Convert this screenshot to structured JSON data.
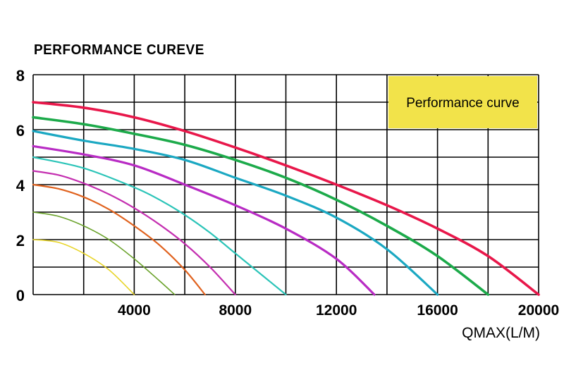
{
  "chart_data": {
    "type": "line",
    "title": "PERFORMANCE CUREVE",
    "xlabel": "QMAX(L/M)",
    "ylabel": "",
    "xlim": [
      0,
      20000
    ],
    "ylim": [
      0,
      8
    ],
    "x_ticks": [
      4000,
      8000,
      12000,
      16000,
      20000
    ],
    "x_tick_labels": [
      "4000",
      "8000",
      "12000",
      "16000",
      "20000"
    ],
    "y_ticks": [
      0,
      2,
      4,
      6,
      8
    ],
    "y_tick_labels": [
      "0",
      "2",
      "4",
      "6",
      "8"
    ],
    "grid": true,
    "legend_box": {
      "label": "Performance curve",
      "placement": "top-right",
      "color": "#f2e34a"
    },
    "series": [
      {
        "color": "#e8d52a",
        "x": [
          0,
          1000,
          2000,
          3000,
          4000
        ],
        "y": [
          2.0,
          1.9,
          1.5,
          0.9,
          0.0
        ]
      },
      {
        "color": "#6aa22a",
        "x": [
          0,
          1000,
          2000,
          3000,
          4000,
          5000,
          5600
        ],
        "y": [
          3.0,
          2.85,
          2.5,
          2.0,
          1.3,
          0.5,
          0.0
        ]
      },
      {
        "color": "#e0621e",
        "x": [
          0,
          1000,
          2000,
          3000,
          4000,
          5000,
          6000,
          6800
        ],
        "y": [
          4.0,
          3.85,
          3.55,
          3.1,
          2.5,
          1.8,
          0.9,
          0.0
        ]
      },
      {
        "color": "#c42fb0",
        "x": [
          0,
          1000,
          2000,
          3000,
          4000,
          5000,
          6000,
          7000,
          8000
        ],
        "y": [
          4.5,
          4.35,
          4.05,
          3.65,
          3.15,
          2.55,
          1.85,
          1.0,
          0.0
        ]
      },
      {
        "color": "#2bc4b8",
        "x": [
          0,
          2000,
          4000,
          5000,
          6000,
          7000,
          8000,
          9000,
          10000
        ],
        "y": [
          5.0,
          4.6,
          3.9,
          3.45,
          2.9,
          2.25,
          1.5,
          0.75,
          0.0
        ]
      },
      {
        "color": "#b82bc4",
        "x": [
          0,
          2000,
          4000,
          6000,
          8000,
          10000,
          12000,
          13500
        ],
        "y": [
          5.4,
          5.1,
          4.7,
          4.0,
          3.25,
          2.4,
          1.3,
          0.0
        ]
      },
      {
        "color": "#1ba8c2",
        "x": [
          0,
          2000,
          4000,
          6000,
          8000,
          10000,
          12000,
          14000,
          16000
        ],
        "y": [
          5.95,
          5.6,
          5.3,
          4.9,
          4.25,
          3.6,
          2.8,
          1.65,
          0.0
        ]
      },
      {
        "color": "#1caa4a",
        "x": [
          0,
          2000,
          4000,
          6000,
          8000,
          10000,
          12000,
          14000,
          16000,
          18000
        ],
        "y": [
          6.45,
          6.2,
          5.85,
          5.45,
          4.9,
          4.25,
          3.45,
          2.5,
          1.4,
          0.0
        ]
      },
      {
        "color": "#e8174a",
        "x": [
          0,
          2000,
          4000,
          6000,
          8000,
          10000,
          12000,
          14000,
          16000,
          18000,
          20000
        ],
        "y": [
          7.0,
          6.8,
          6.45,
          5.95,
          5.35,
          4.7,
          4.0,
          3.25,
          2.4,
          1.4,
          0.0
        ]
      }
    ]
  }
}
